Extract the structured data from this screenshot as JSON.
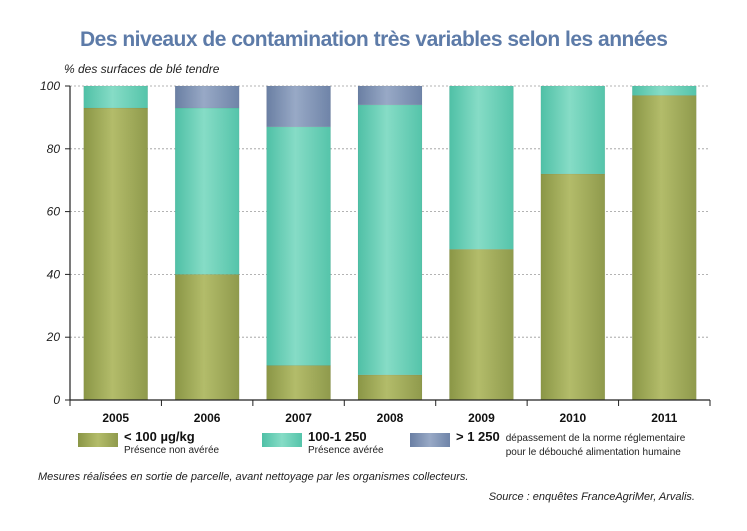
{
  "chart_data": {
    "type": "bar",
    "stacked": true,
    "title": "Des niveaux de contamination très variables selon les années",
    "ylabel": "% des surfaces de blé tendre",
    "xlabel": "",
    "ylim": [
      0,
      100
    ],
    "yticks": [
      "0",
      "20",
      "40",
      "60",
      "80",
      "100"
    ],
    "grid": true,
    "legend_position": "bottom",
    "categories": [
      "2005",
      "2006",
      "2007",
      "2008",
      "2009",
      "2010",
      "2011"
    ],
    "series": [
      {
        "name": "< 100 µg/kg",
        "description": "Présence non avérée",
        "color": "#a2ab58",
        "values": [
          93,
          40,
          11,
          8,
          48,
          72,
          97
        ]
      },
      {
        "name": "100-1 250",
        "description": "Présence avérée",
        "color": "#6fd2b8",
        "values": [
          7,
          53,
          76,
          86,
          52,
          28,
          3
        ]
      },
      {
        "name": "> 1 250",
        "description": "dépassement de la norme réglementaire pour le débouché alimentation humaine",
        "color": "#8095b5",
        "values": [
          0,
          7,
          13,
          6,
          0,
          0,
          0
        ]
      }
    ]
  },
  "legend": {
    "items": [
      {
        "label": "< 100 µg/kg",
        "sublabel": "Présence non avérée"
      },
      {
        "label": "100-1 250",
        "sublabel": "Présence avérée"
      },
      {
        "label": "> 1 250",
        "note_line1": "dépassement de la norme réglementaire",
        "note_line2": "pour le débouché alimentation humaine"
      }
    ]
  },
  "footer": {
    "note": "Mesures réalisées en sortie de parcelle, avant nettoyage par les organismes collecteurs.",
    "source": "Source : enquêtes FranceAgriMer, Arvalis."
  }
}
